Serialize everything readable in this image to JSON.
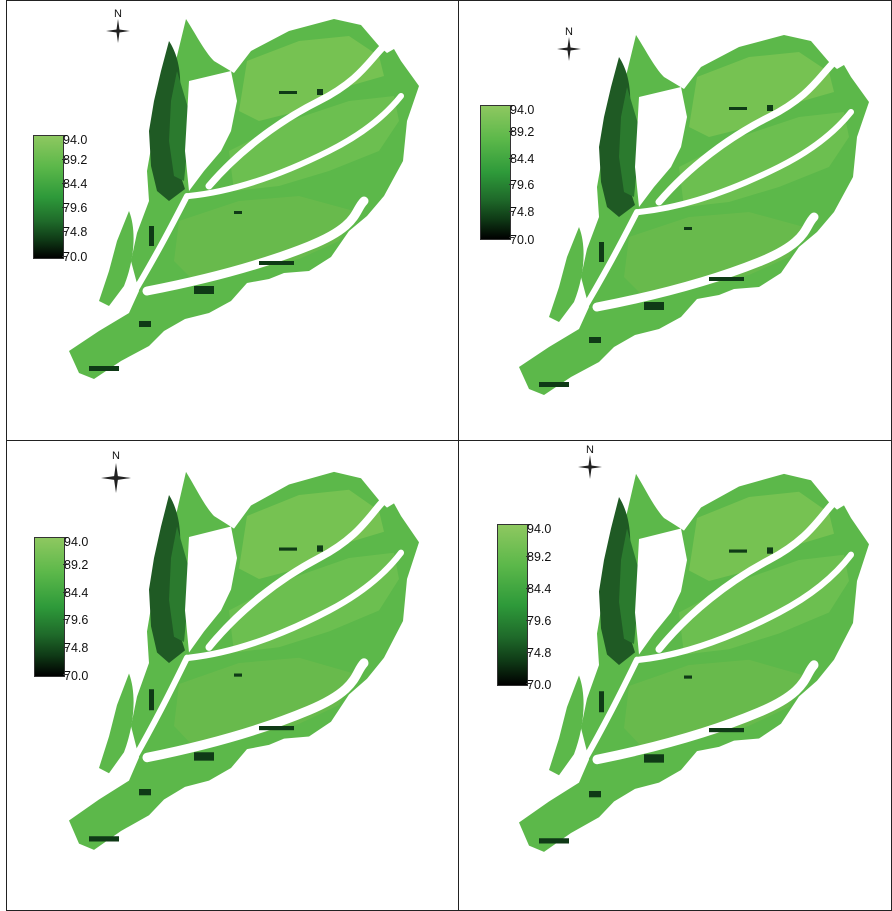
{
  "panels": [
    {
      "north_label": "N",
      "legend": [
        "94.0",
        "89.2",
        "84.4",
        "79.6",
        "74.8",
        "70.0"
      ]
    },
    {
      "north_label": "N",
      "legend": [
        "94.0",
        "89.2",
        "84.4",
        "79.6",
        "74.8",
        "70.0"
      ]
    },
    {
      "north_label": "N",
      "legend": [
        "94.0",
        "89.2",
        "84.4",
        "79.6",
        "74.8",
        "70.0"
      ]
    },
    {
      "north_label": "N",
      "legend": [
        "94.0",
        "89.2",
        "84.4",
        "79.6",
        "74.8",
        "70.0"
      ]
    }
  ],
  "colors": {
    "max": "#8ec860",
    "mid": "#2e9a3a",
    "min": "#000000",
    "river": "#ffffff"
  }
}
